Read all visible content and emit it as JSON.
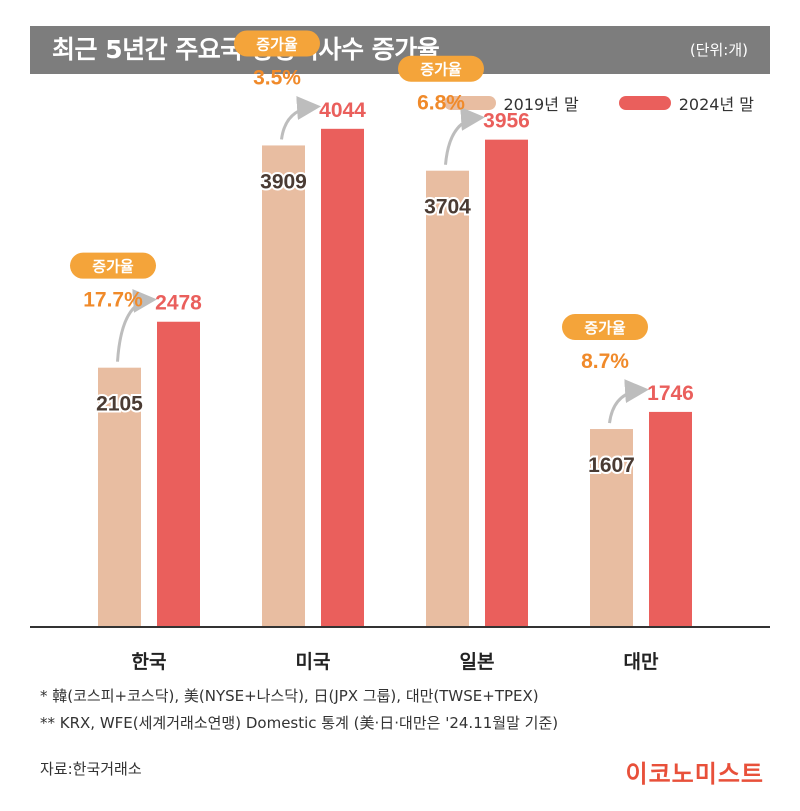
{
  "title": "최근 5년간 주요국 상장회사수 증가율",
  "unit": "(단위:개)",
  "colors": {
    "y2019": "#e8bda1",
    "y2024": "#ea5f5c",
    "badge": "#f4a43a",
    "pct": "#f08a2a",
    "arrow": "#bdbdbd",
    "axis": "#333333",
    "brand": "#e8503a"
  },
  "increase_label": "증가율",
  "chart_data": {
    "type": "bar",
    "categories": [
      "한국",
      "미국",
      "일본",
      "대만"
    ],
    "series": [
      {
        "name": "2019년 말",
        "values": [
          2105,
          3909,
          3704,
          1607
        ]
      },
      {
        "name": "2024년 말",
        "values": [
          2478,
          4044,
          3956,
          1746
        ]
      }
    ],
    "growth": [
      "17.7%",
      "3.5%",
      "6.8%",
      "8.7%"
    ],
    "ylim": [
      0,
      4700
    ]
  },
  "notes": [
    "* 韓(코스피+코스닥), 美(NYSE+나스닥), 日(JPX 그룹), 대만(TWSE+TPEX)",
    "** KRX, WFE(세계거래소연맹) Domestic 통계 (美·日·대만은 '24.11월말 기준)"
  ],
  "source": "자료:한국거래소",
  "brand": "이코노미스트"
}
